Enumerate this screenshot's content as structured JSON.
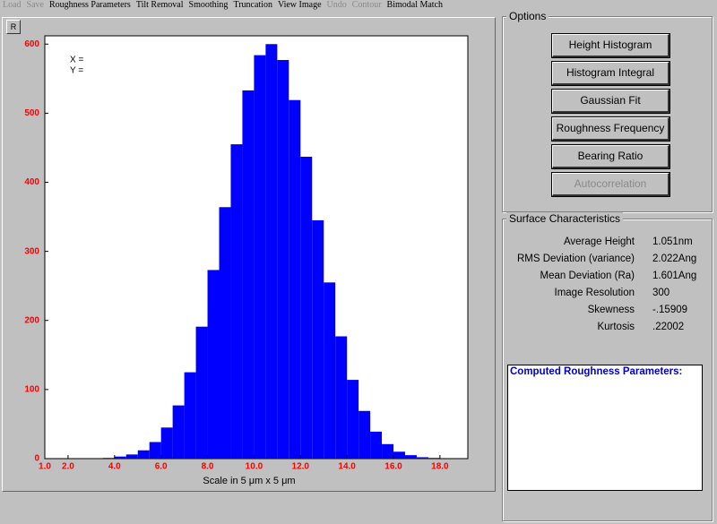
{
  "menu": [
    {
      "label": "Load",
      "enabled": false
    },
    {
      "label": "Save",
      "enabled": false
    },
    {
      "label": "Roughness Parameters",
      "enabled": true
    },
    {
      "label": "Tilt Removal",
      "enabled": true
    },
    {
      "label": "Smoothing",
      "enabled": true
    },
    {
      "label": "Truncation",
      "enabled": true
    },
    {
      "label": "View Image",
      "enabled": true
    },
    {
      "label": "Undo",
      "enabled": false
    },
    {
      "label": "Contour",
      "enabled": false
    },
    {
      "label": "Bimodal Match",
      "enabled": true
    }
  ],
  "chart_button": "R",
  "cursor": {
    "x": "X =",
    "y": "Y ="
  },
  "chart_data": {
    "type": "histogram",
    "x_label": "Scale in 5 μm x 5 μm",
    "color": "#0000ff",
    "tick_label_color": "#ff0000",
    "bins": [
      3.0,
      3.5,
      4.0,
      4.5,
      5.0,
      5.5,
      6.0,
      6.5,
      7.0,
      7.5,
      8.0,
      8.5,
      9.0,
      9.5,
      10.0,
      10.5,
      11.0,
      11.5,
      12.0,
      12.5,
      13.0,
      13.5,
      14.0,
      14.5,
      15.0,
      15.5,
      16.0,
      16.5,
      17.0,
      17.5,
      18.0
    ],
    "values": [
      0,
      1,
      3,
      6,
      12,
      24,
      45,
      77,
      125,
      191,
      273,
      364,
      455,
      533,
      584,
      600,
      577,
      519,
      437,
      345,
      255,
      177,
      114,
      69,
      39,
      21,
      10,
      5,
      2,
      1
    ],
    "xlim": [
      1.0,
      19.2
    ],
    "ylim": [
      0,
      612
    ],
    "xticks": [
      {
        "value": 1,
        "label": "1.0"
      },
      {
        "value": 2,
        "label": "2.0"
      },
      {
        "value": 4,
        "label": "4.0"
      },
      {
        "value": 6,
        "label": "6.0"
      },
      {
        "value": 8,
        "label": "8.0"
      },
      {
        "value": 10,
        "label": "10.0"
      },
      {
        "value": 12,
        "label": "12.0"
      },
      {
        "value": 14,
        "label": "14.0"
      },
      {
        "value": 16,
        "label": "16.0"
      },
      {
        "value": 18,
        "label": "18.0"
      }
    ],
    "yticks": [
      0,
      100,
      200,
      300,
      400,
      500,
      600
    ]
  },
  "options": {
    "title": "Options",
    "buttons": [
      {
        "label": "Height Histogram",
        "enabled": true
      },
      {
        "label": "Histogram Integral",
        "enabled": true
      },
      {
        "label": "Gaussian Fit",
        "enabled": true
      },
      {
        "label": "Roughness Frequency",
        "enabled": true
      },
      {
        "label": "Bearing Ratio",
        "enabled": true
      },
      {
        "label": "Autocorrelation",
        "enabled": false
      }
    ]
  },
  "surface": {
    "title": "Surface Characteristics",
    "rows": [
      [
        "Average Height",
        "1.051nm"
      ],
      [
        "RMS Deviation (variance)",
        "2.022Ang"
      ],
      [
        "Mean Deviation (Ra)",
        "1.601Ang"
      ],
      [
        "Image Resolution",
        "300"
      ],
      [
        "Skewness",
        "-.15909"
      ],
      [
        "Kurtosis",
        ".22002"
      ]
    ]
  },
  "computed": {
    "title": "Computed Roughness Parameters:"
  }
}
